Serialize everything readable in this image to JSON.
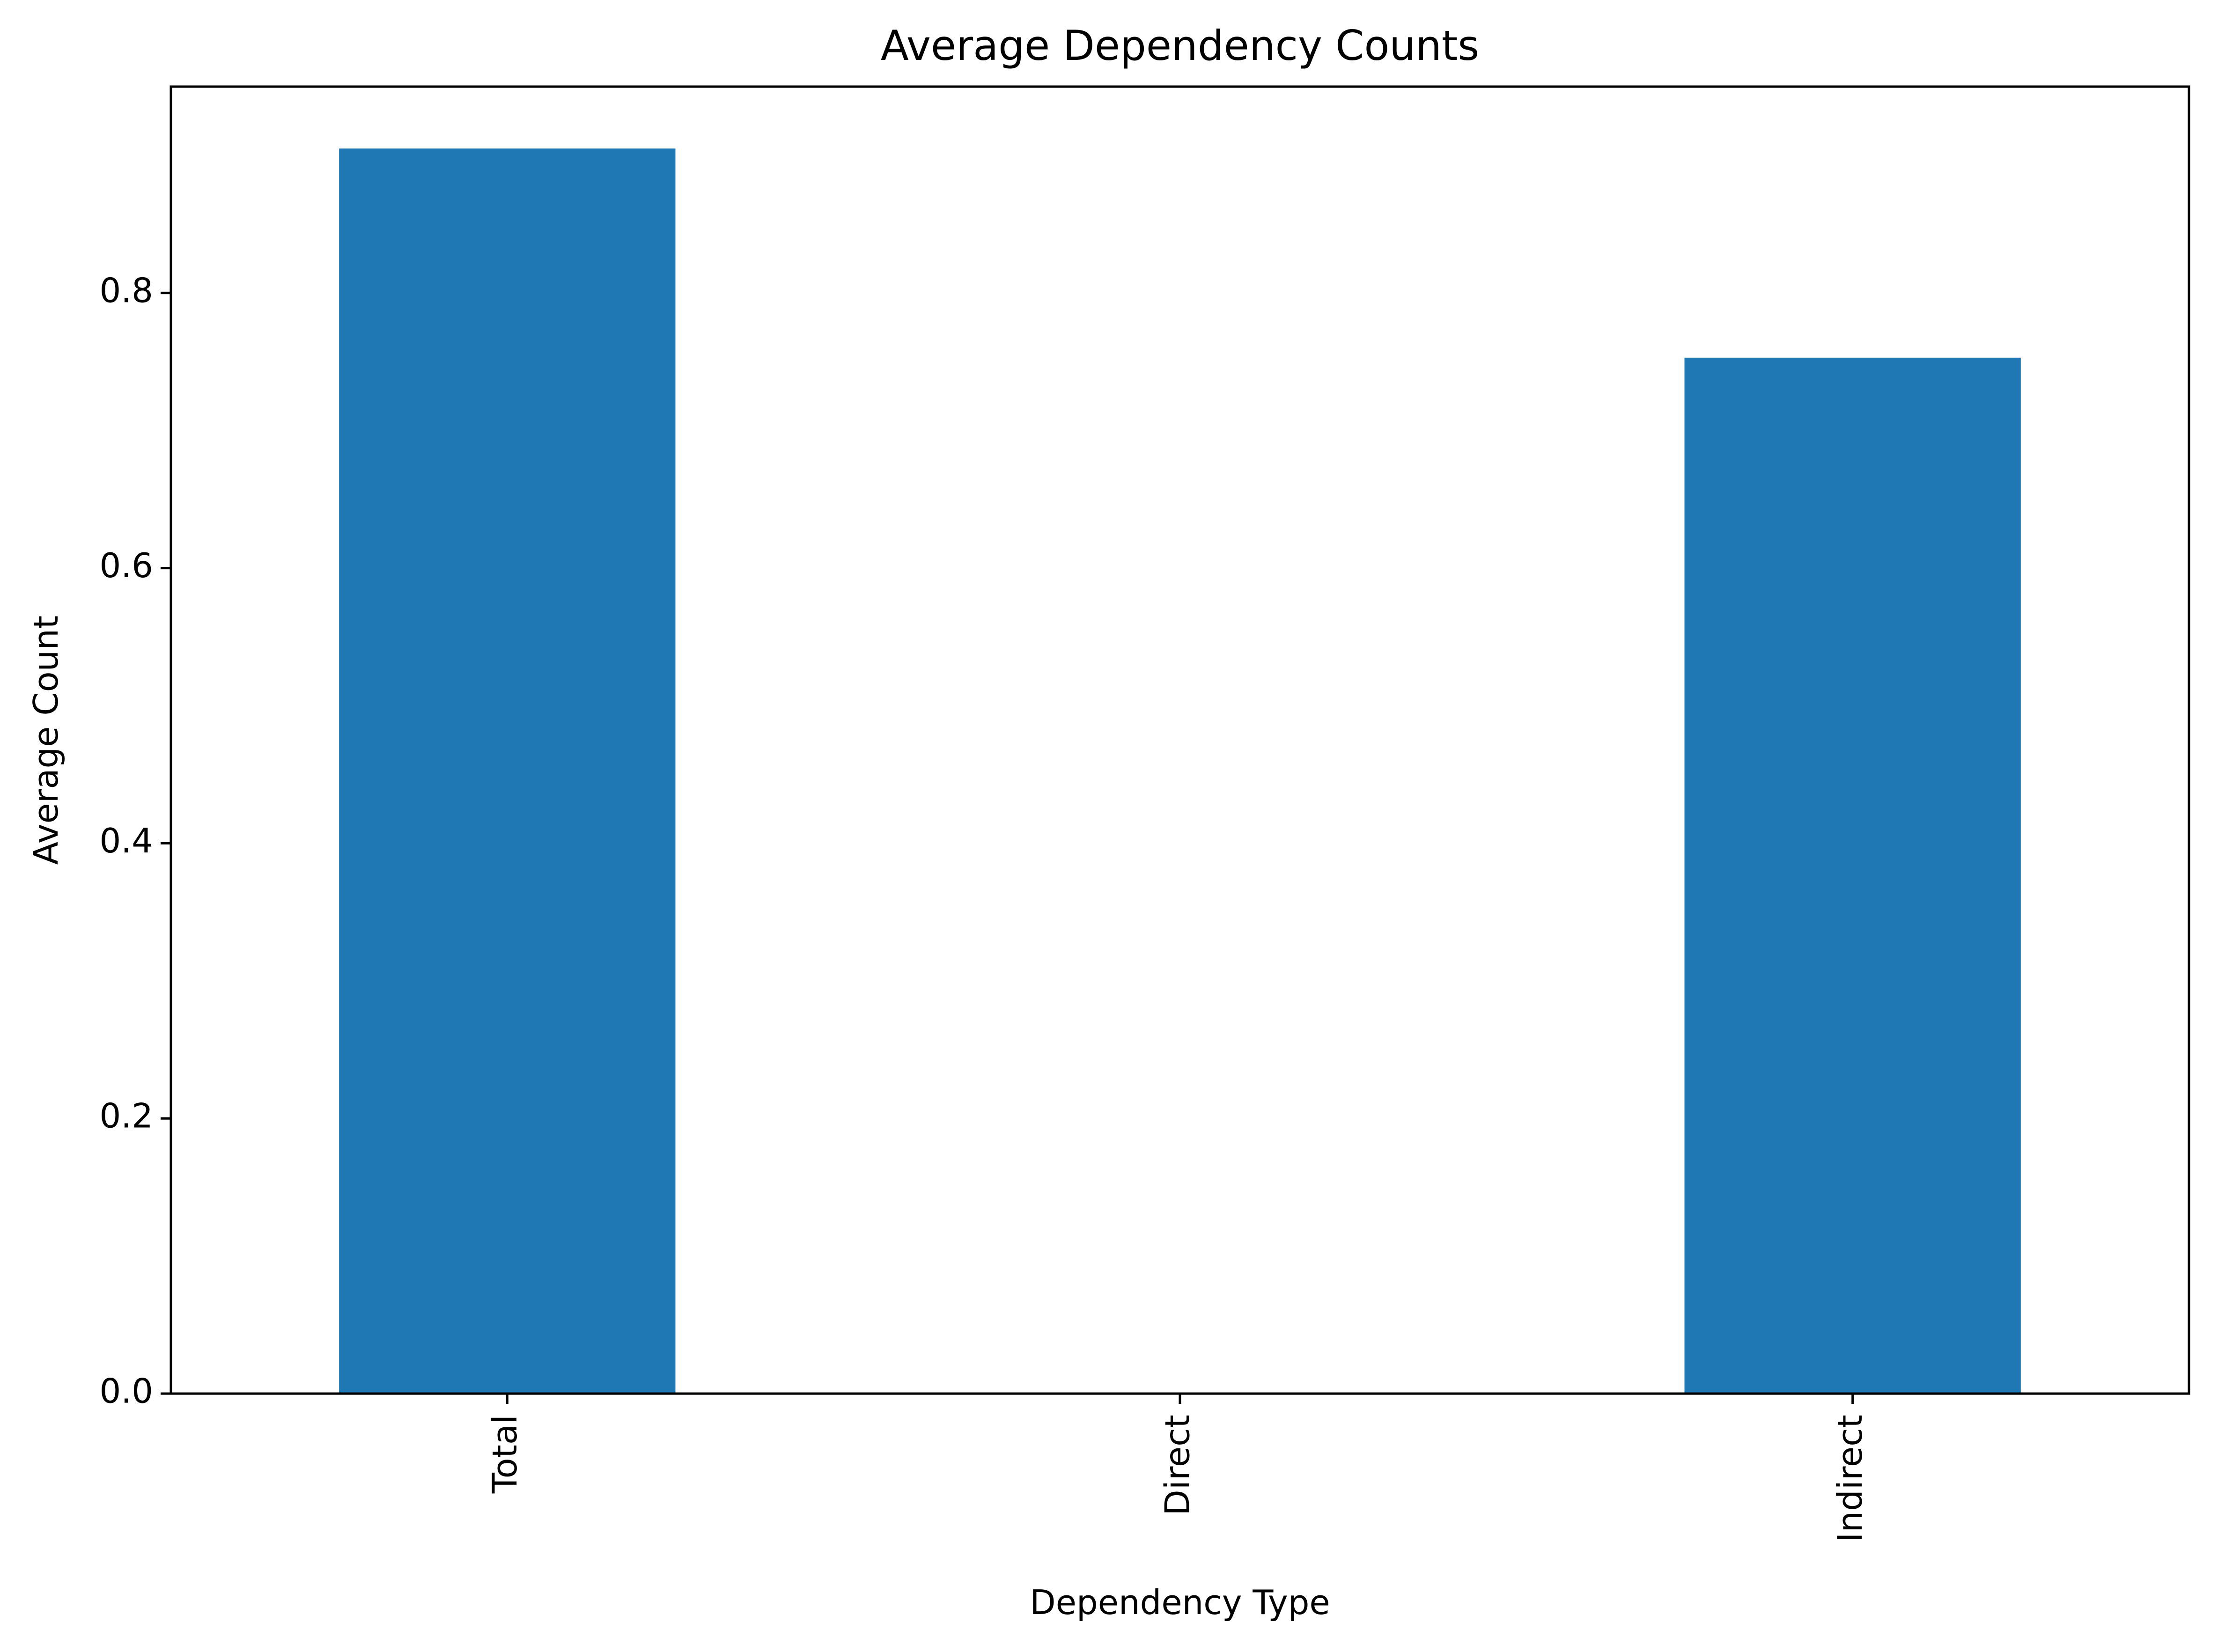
{
  "chart_data": {
    "type": "bar",
    "title": "Average Dependency Counts",
    "xlabel": "Dependency Type",
    "ylabel": "Average Count",
    "categories": [
      "Total",
      "Direct",
      "Indirect"
    ],
    "values": [
      0.905,
      0.0,
      0.753
    ],
    "ylim": [
      0,
      0.95
    ],
    "yticks": [
      0.0,
      0.2,
      0.4,
      0.6,
      0.8
    ],
    "ytick_labels": [
      "0.0",
      "0.2",
      "0.4",
      "0.6",
      "0.8"
    ],
    "grid": false,
    "legend": "none",
    "x_tick_rotation": "vertical",
    "colors": {
      "bar": "#1f77b4",
      "axis": "#000000",
      "background": "#ffffff"
    }
  }
}
